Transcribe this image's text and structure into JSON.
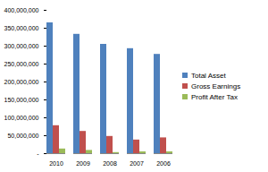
{
  "chart_data": {
    "type": "bar",
    "categories": [
      "2010",
      "2009",
      "2008",
      "2007",
      "2006"
    ],
    "series": [
      {
        "name": "Total Asset",
        "color": "#4f81bd",
        "values": [
          365000000,
          333000000,
          305000000,
          293000000,
          277000000
        ]
      },
      {
        "name": "Gross Earnings",
        "color": "#c0504d",
        "values": [
          78000000,
          62000000,
          48000000,
          38000000,
          44000000
        ]
      },
      {
        "name": "Profit After Tax",
        "color": "#9bbb59",
        "values": [
          13000000,
          9000000,
          3000000,
          5000000,
          5000000
        ]
      }
    ],
    "ylim": [
      0,
      400000000
    ],
    "yticks": [
      {
        "value": 0,
        "label": "-"
      },
      {
        "value": 50000000,
        "label": "50,000,000"
      },
      {
        "value": 100000000,
        "label": "100,000,000"
      },
      {
        "value": 150000000,
        "label": "150,000,000"
      },
      {
        "value": 200000000,
        "label": "200,000,000"
      },
      {
        "value": 250000000,
        "label": "250,000,000"
      },
      {
        "value": 300000000,
        "label": "300,000,000"
      },
      {
        "value": 350000000,
        "label": "350,000,000"
      },
      {
        "value": 400000000,
        "label": "400,000,000"
      }
    ],
    "grid": false,
    "legend": "right"
  }
}
